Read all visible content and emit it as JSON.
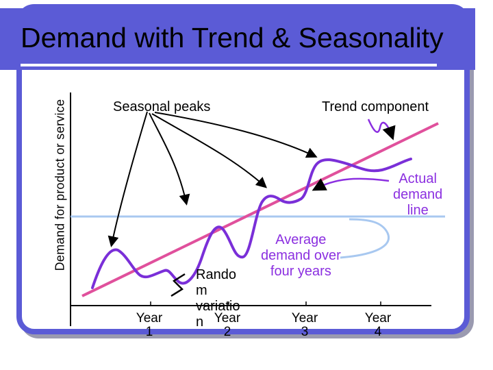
{
  "slide": {
    "title": "Demand with Trend & Seasonality",
    "y_axis_label": "Demand for product or service"
  },
  "annotations": {
    "seasonal_peaks": "Seasonal peaks",
    "trend_component": "Trend component",
    "actual_demand_line": [
      "Actual",
      "demand",
      "line"
    ],
    "random_variation": [
      "Rando",
      "m",
      "variatio",
      "n"
    ],
    "average_demand": [
      "Average",
      "demand over",
      "four years"
    ]
  },
  "x_axis": {
    "ticks": [
      {
        "top": "Year",
        "bottom": "1"
      },
      {
        "top": "Year",
        "bottom": "2"
      },
      {
        "top": "Year",
        "bottom": "3"
      },
      {
        "top": "Year",
        "bottom": "4"
      }
    ]
  },
  "colors": {
    "frame": "#5b5bd6",
    "trend": "#e0509c",
    "actual": "#7a2fd8",
    "average": "#a8c8f0",
    "annotation_text": "#8b2fe0"
  }
}
